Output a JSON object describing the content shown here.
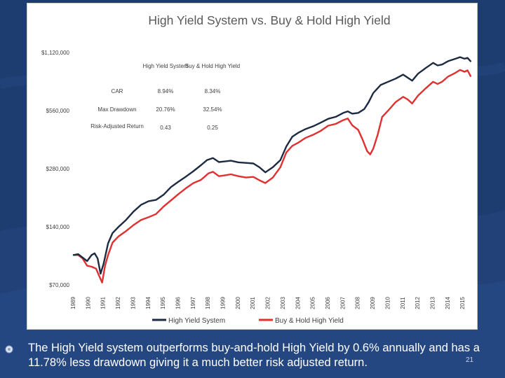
{
  "chart_data": {
    "type": "line",
    "title": "High Yield System vs. Buy & Hold High Yield",
    "y_scale": "log",
    "ylim": [
      70000,
      1120000
    ],
    "y_ticks": [
      {
        "value": 70000,
        "label": "$70,000"
      },
      {
        "value": 140000,
        "label": "$140,000"
      },
      {
        "value": 280000,
        "label": "$280,000"
      },
      {
        "value": 560000,
        "label": "$560,000"
      },
      {
        "value": 1120000,
        "label": "$1,120,000"
      }
    ],
    "x_range": [
      1989,
      2015.6
    ],
    "x_ticks": [
      "1989",
      "1990",
      "1991",
      "1992",
      "1993",
      "1994",
      "1995",
      "1996",
      "1997",
      "1998",
      "1999",
      "2000",
      "2001",
      "2002",
      "2003",
      "2004",
      "2005",
      "2006",
      "2007",
      "2008",
      "2009",
      "2010",
      "2011",
      "2012",
      "2013",
      "2014",
      "2015"
    ],
    "series": [
      {
        "name": "High Yield System",
        "color": "#1c2b42",
        "points": [
          [
            1989.0,
            100000
          ],
          [
            1989.3,
            101000
          ],
          [
            1989.6,
            97000
          ],
          [
            1989.9,
            93000
          ],
          [
            1990.2,
            100000
          ],
          [
            1990.4,
            102000
          ],
          [
            1990.6,
            96000
          ],
          [
            1990.8,
            80000
          ],
          [
            1991.0,
            90000
          ],
          [
            1991.3,
            115000
          ],
          [
            1991.6,
            130000
          ],
          [
            1992.0,
            140000
          ],
          [
            1992.5,
            152000
          ],
          [
            1993.0,
            168000
          ],
          [
            1993.5,
            182000
          ],
          [
            1994.0,
            190000
          ],
          [
            1994.5,
            193000
          ],
          [
            1995.0,
            205000
          ],
          [
            1995.5,
            225000
          ],
          [
            1996.0,
            240000
          ],
          [
            1996.5,
            255000
          ],
          [
            1997.0,
            272000
          ],
          [
            1997.5,
            292000
          ],
          [
            1997.9,
            310000
          ],
          [
            1998.3,
            318000
          ],
          [
            1998.7,
            303000
          ],
          [
            1999.0,
            305000
          ],
          [
            1999.5,
            308000
          ],
          [
            2000.0,
            302000
          ],
          [
            2000.5,
            300000
          ],
          [
            2001.0,
            298000
          ],
          [
            2001.4,
            285000
          ],
          [
            2001.8,
            268000
          ],
          [
            2002.3,
            285000
          ],
          [
            2002.8,
            310000
          ],
          [
            2003.2,
            365000
          ],
          [
            2003.6,
            410000
          ],
          [
            2004.0,
            430000
          ],
          [
            2004.5,
            450000
          ],
          [
            2005.0,
            465000
          ],
          [
            2005.5,
            485000
          ],
          [
            2006.0,
            508000
          ],
          [
            2006.5,
            520000
          ],
          [
            2007.0,
            545000
          ],
          [
            2007.3,
            555000
          ],
          [
            2007.6,
            540000
          ],
          [
            2008.0,
            545000
          ],
          [
            2008.4,
            570000
          ],
          [
            2008.7,
            620000
          ],
          [
            2009.0,
            690000
          ],
          [
            2009.5,
            760000
          ],
          [
            2010.0,
            790000
          ],
          [
            2010.5,
            820000
          ],
          [
            2011.0,
            860000
          ],
          [
            2011.3,
            830000
          ],
          [
            2011.6,
            800000
          ],
          [
            2012.0,
            870000
          ],
          [
            2012.5,
            930000
          ],
          [
            2013.0,
            990000
          ],
          [
            2013.3,
            960000
          ],
          [
            2013.6,
            970000
          ],
          [
            2014.0,
            1010000
          ],
          [
            2014.5,
            1040000
          ],
          [
            2014.8,
            1060000
          ],
          [
            2015.1,
            1040000
          ],
          [
            2015.3,
            1050000
          ],
          [
            2015.5,
            1010000
          ]
        ]
      },
      {
        "name": "Buy & Hold High Yield",
        "color": "#e03030",
        "points": [
          [
            1989.0,
            100000
          ],
          [
            1989.3,
            100000
          ],
          [
            1989.6,
            96000
          ],
          [
            1989.9,
            88000
          ],
          [
            1990.2,
            87000
          ],
          [
            1990.5,
            85000
          ],
          [
            1990.7,
            78000
          ],
          [
            1990.9,
            72000
          ],
          [
            1991.1,
            88000
          ],
          [
            1991.3,
            100000
          ],
          [
            1991.6,
            116000
          ],
          [
            1992.0,
            125000
          ],
          [
            1992.5,
            133000
          ],
          [
            1993.0,
            143000
          ],
          [
            1993.5,
            152000
          ],
          [
            1994.0,
            157000
          ],
          [
            1994.5,
            163000
          ],
          [
            1995.0,
            178000
          ],
          [
            1995.5,
            192000
          ],
          [
            1996.0,
            207000
          ],
          [
            1996.5,
            222000
          ],
          [
            1997.0,
            236000
          ],
          [
            1997.5,
            245000
          ],
          [
            1998.0,
            265000
          ],
          [
            1998.3,
            270000
          ],
          [
            1998.7,
            256000
          ],
          [
            1999.0,
            258000
          ],
          [
            1999.5,
            262000
          ],
          [
            2000.0,
            256000
          ],
          [
            2000.5,
            252000
          ],
          [
            2001.0,
            254000
          ],
          [
            2001.4,
            244000
          ],
          [
            2001.8,
            236000
          ],
          [
            2002.3,
            252000
          ],
          [
            2002.8,
            285000
          ],
          [
            2003.2,
            340000
          ],
          [
            2003.6,
            368000
          ],
          [
            2004.0,
            382000
          ],
          [
            2004.5,
            405000
          ],
          [
            2005.0,
            420000
          ],
          [
            2005.5,
            440000
          ],
          [
            2006.0,
            468000
          ],
          [
            2006.5,
            478000
          ],
          [
            2007.0,
            500000
          ],
          [
            2007.3,
            510000
          ],
          [
            2007.6,
            470000
          ],
          [
            2008.0,
            445000
          ],
          [
            2008.3,
            395000
          ],
          [
            2008.6,
            345000
          ],
          [
            2008.8,
            332000
          ],
          [
            2009.0,
            355000
          ],
          [
            2009.3,
            420000
          ],
          [
            2009.6,
            520000
          ],
          [
            2010.0,
            560000
          ],
          [
            2010.5,
            620000
          ],
          [
            2011.0,
            660000
          ],
          [
            2011.3,
            640000
          ],
          [
            2011.6,
            610000
          ],
          [
            2012.0,
            670000
          ],
          [
            2012.5,
            730000
          ],
          [
            2013.0,
            790000
          ],
          [
            2013.3,
            770000
          ],
          [
            2013.6,
            790000
          ],
          [
            2014.0,
            840000
          ],
          [
            2014.5,
            880000
          ],
          [
            2014.8,
            910000
          ],
          [
            2015.1,
            890000
          ],
          [
            2015.3,
            905000
          ],
          [
            2015.5,
            845000
          ]
        ]
      }
    ],
    "legend": {
      "position": "bottom",
      "items": [
        "High Yield System",
        "Buy & Hold High Yield"
      ]
    },
    "stats_table": {
      "headers": [
        "High Yield System",
        "Buy & Hold High Yield"
      ],
      "rows": [
        {
          "label": "CAR",
          "values": [
            "8.94%",
            "8.34%"
          ]
        },
        {
          "label": "Max Drawdown",
          "values": [
            "20.76%",
            "32.54%"
          ]
        },
        {
          "label": "Risk-Adjusted Return",
          "values": [
            "0.43",
            "0.25"
          ]
        }
      ]
    }
  },
  "caption": "The High Yield system outperforms buy-and-hold High Yield by 0.6% annually and has a 11.78% less drawdown giving it a much better risk adjusted return.",
  "slide_number": "21",
  "colors": {
    "background": "#1d3c70",
    "series_system": "#1c2b42",
    "series_buyhold": "#e03030"
  }
}
